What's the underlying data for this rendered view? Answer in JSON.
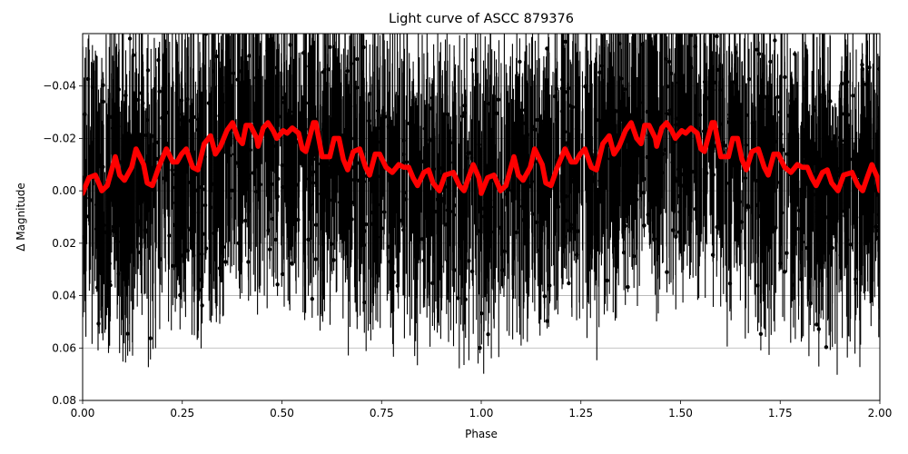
{
  "chart_data": {
    "type": "scatter",
    "title": "Light curve of ASCC 879376",
    "xlabel": "Phase",
    "ylabel": "Δ Magnitude",
    "xlim": [
      0.0,
      2.0
    ],
    "ylim": [
      0.08,
      -0.06
    ],
    "y_inverted": true,
    "grid": true,
    "x_ticks": [
      "0.00",
      "0.25",
      "0.50",
      "0.75",
      "1.00",
      "1.25",
      "1.50",
      "1.75",
      "2.00"
    ],
    "x_tick_values": [
      0.0,
      0.25,
      0.5,
      0.75,
      1.0,
      1.25,
      1.5,
      1.75,
      2.0
    ],
    "y_ticks": [
      "−0.04",
      "−0.02",
      "0.00",
      "0.02",
      "0.04",
      "0.06",
      "0.08"
    ],
    "y_tick_values": [
      -0.04,
      -0.02,
      0.0,
      0.02,
      0.04,
      0.06,
      0.08
    ],
    "series": [
      {
        "name": "observations",
        "kind": "errorbar-scatter",
        "color": "#000000",
        "description": "Dense phase-folded photometry with error bars spanning roughly -0.06 to 0.08 mag across the full phase range",
        "approx_mag_range": [
          -0.06,
          0.08
        ]
      },
      {
        "name": "model fit",
        "kind": "line",
        "color": "#ff0000",
        "linewidth": 4,
        "period_in_phase": 1.0,
        "phase": [
          0.0,
          0.016,
          0.032,
          0.043,
          0.048,
          0.062,
          0.082,
          0.093,
          0.105,
          0.123,
          0.134,
          0.153,
          0.162,
          0.175,
          0.191,
          0.21,
          0.226,
          0.237,
          0.248,
          0.26,
          0.276,
          0.289,
          0.305,
          0.321,
          0.333,
          0.346,
          0.362,
          0.376,
          0.39,
          0.401,
          0.41,
          0.421,
          0.437,
          0.44,
          0.453,
          0.465,
          0.478,
          0.487,
          0.503,
          0.513,
          0.526,
          0.542,
          0.551,
          0.56,
          0.579,
          0.585,
          0.601,
          0.62,
          0.631,
          0.643,
          0.654,
          0.665,
          0.679,
          0.695,
          0.71,
          0.72,
          0.734,
          0.745,
          0.761,
          0.777,
          0.793,
          0.806,
          0.818,
          0.829,
          0.84,
          0.856,
          0.868,
          0.879,
          0.895,
          0.909,
          0.93,
          0.945,
          0.957,
          0.968,
          0.98,
          0.994,
          1.0
        ],
        "mag": [
          0.001,
          -0.005,
          -0.006,
          -0.002,
          0.0,
          -0.002,
          -0.013,
          -0.006,
          -0.004,
          -0.009,
          -0.016,
          -0.01,
          -0.003,
          -0.002,
          -0.009,
          -0.016,
          -0.011,
          -0.011,
          -0.014,
          -0.016,
          -0.009,
          -0.008,
          -0.018,
          -0.021,
          -0.014,
          -0.017,
          -0.023,
          -0.026,
          -0.02,
          -0.018,
          -0.025,
          -0.025,
          -0.02,
          -0.017,
          -0.024,
          -0.026,
          -0.023,
          -0.02,
          -0.023,
          -0.022,
          -0.024,
          -0.022,
          -0.016,
          -0.015,
          -0.026,
          -0.026,
          -0.013,
          -0.013,
          -0.02,
          -0.02,
          -0.012,
          -0.008,
          -0.015,
          -0.016,
          -0.009,
          -0.006,
          -0.014,
          -0.014,
          -0.009,
          -0.007,
          -0.01,
          -0.009,
          -0.009,
          -0.005,
          -0.002,
          -0.007,
          -0.008,
          -0.003,
          0.0,
          -0.006,
          -0.007,
          -0.002,
          0.0,
          -0.005,
          -0.01,
          -0.005,
          0.0
        ]
      }
    ]
  }
}
